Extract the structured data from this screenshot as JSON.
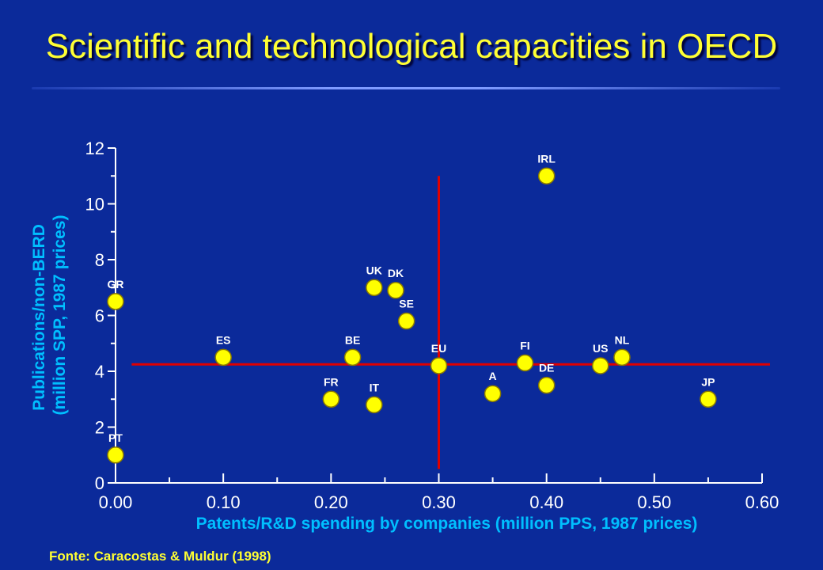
{
  "slide": {
    "title": "Scientific and technological capacities in OECD",
    "source": "Fonte: Caracostas & Muldur (1998)"
  },
  "colors": {
    "background": "#0b2a9a",
    "title": "#ffff33",
    "axis": "#ffffff",
    "tick_label": "#ffffff",
    "axis_label": "#00bfff",
    "point_fill": "#ffff00",
    "point_stroke": "#8a7a00",
    "point_label": "#ffffff",
    "reference_line": "#e00000"
  },
  "chart_data": {
    "type": "scatter",
    "title": "",
    "xlabel": "Patents/R&D spending by companies (million PPS, 1987 prices)",
    "ylabel_lines": [
      "Publications/non-BERD",
      "(million SPP, 1987 prices)"
    ],
    "xlim": [
      0,
      0.6
    ],
    "ylim": [
      0,
      12
    ],
    "x_ticks": [
      "0.00",
      "0.10",
      "0.20",
      "0.30",
      "0.40",
      "0.50",
      "0.60"
    ],
    "y_ticks": [
      "0",
      "2",
      "4",
      "6",
      "8",
      "10",
      "12"
    ],
    "grid": false,
    "reference_lines": {
      "vertical": {
        "x": 0.3,
        "y_from": 0.5,
        "y_to": 11.0
      },
      "horizontal": {
        "y": 4.25,
        "x_from": 0.015,
        "x_to": 0.6
      }
    },
    "points": [
      {
        "label": "GR",
        "x": 0.0,
        "y": 6.5
      },
      {
        "label": "PT",
        "x": 0.0,
        "y": 1.0
      },
      {
        "label": "ES",
        "x": 0.1,
        "y": 4.5
      },
      {
        "label": "FR",
        "x": 0.2,
        "y": 3.0
      },
      {
        "label": "BE",
        "x": 0.22,
        "y": 4.5
      },
      {
        "label": "UK",
        "x": 0.24,
        "y": 7.0
      },
      {
        "label": "IT",
        "x": 0.24,
        "y": 2.8
      },
      {
        "label": "DK",
        "x": 0.26,
        "y": 6.9
      },
      {
        "label": "SE",
        "x": 0.27,
        "y": 5.8
      },
      {
        "label": "EU",
        "x": 0.3,
        "y": 4.2
      },
      {
        "label": "A",
        "x": 0.35,
        "y": 3.2
      },
      {
        "label": "FI",
        "x": 0.38,
        "y": 4.3
      },
      {
        "label": "IRL",
        "x": 0.4,
        "y": 11.0
      },
      {
        "label": "DE",
        "x": 0.4,
        "y": 3.5
      },
      {
        "label": "US",
        "x": 0.45,
        "y": 4.2
      },
      {
        "label": "NL",
        "x": 0.47,
        "y": 4.5
      },
      {
        "label": "JP",
        "x": 0.55,
        "y": 3.0
      }
    ]
  }
}
